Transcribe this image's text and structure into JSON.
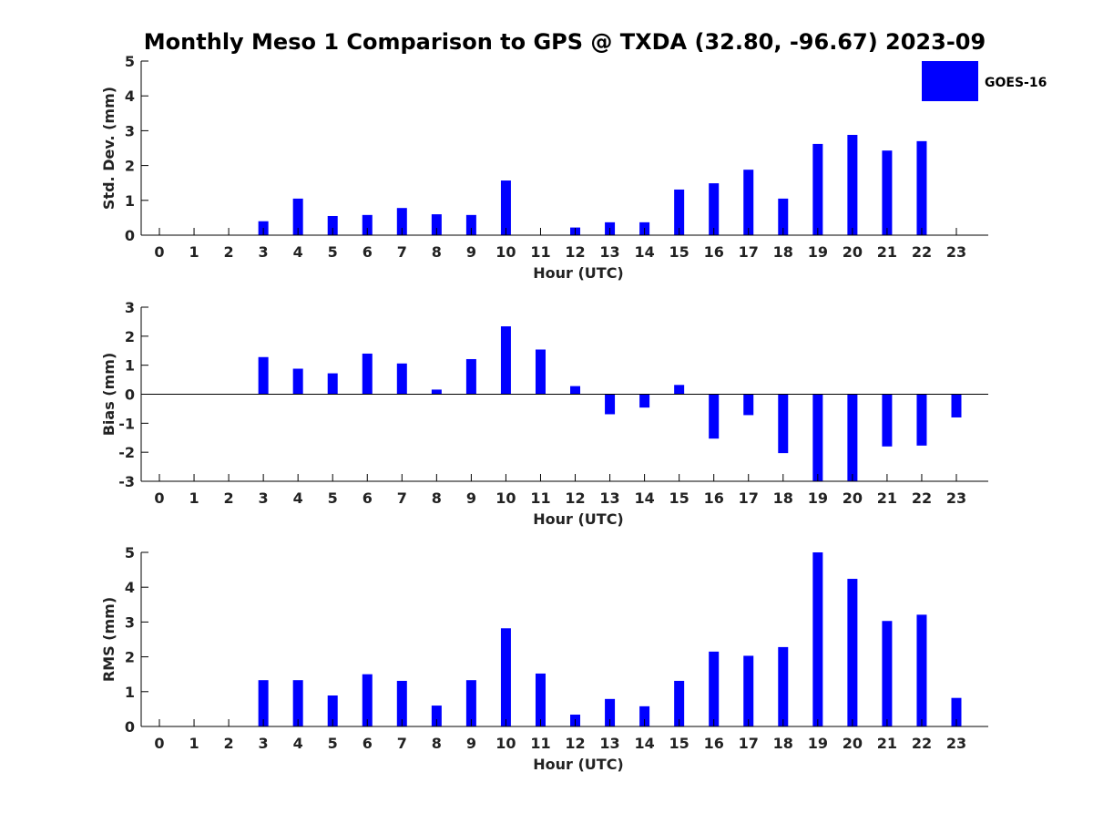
{
  "figure": {
    "title": "Monthly Meso 1 Comparison to GPS @ TXDA (32.80, -96.67) 2023-09",
    "legend": {
      "label": "GOES-16",
      "placement": "top-right",
      "color": "#0000ff"
    }
  },
  "chart_data": [
    {
      "type": "bar",
      "ylabel": "Std. Dev. (mm)",
      "xlabel": "Hour (UTC)",
      "ylim": [
        0,
        5
      ],
      "yticks": [
        0,
        1,
        2,
        3,
        4,
        5
      ],
      "categories": [
        0,
        1,
        2,
        3,
        4,
        5,
        6,
        7,
        8,
        9,
        10,
        11,
        12,
        13,
        14,
        15,
        16,
        17,
        18,
        19,
        20,
        21,
        22,
        23
      ],
      "series": [
        {
          "name": "GOES-16",
          "color": "#0000ff",
          "values": [
            null,
            null,
            null,
            0.4,
            1.05,
            0.55,
            0.58,
            0.78,
            0.6,
            0.58,
            1.57,
            null,
            0.22,
            0.37,
            0.37,
            1.31,
            1.49,
            1.88,
            1.05,
            2.62,
            2.88,
            2.43,
            2.7,
            null
          ]
        }
      ]
    },
    {
      "type": "bar",
      "ylabel": "Bias (mm)",
      "xlabel": "Hour (UTC)",
      "ylim": [
        -3,
        3
      ],
      "yticks": [
        -3,
        -2,
        -1,
        0,
        1,
        2,
        3
      ],
      "categories": [
        0,
        1,
        2,
        3,
        4,
        5,
        6,
        7,
        8,
        9,
        10,
        11,
        12,
        13,
        14,
        15,
        16,
        17,
        18,
        19,
        20,
        21,
        22,
        23
      ],
      "series": [
        {
          "name": "GOES-16",
          "color": "#0000ff",
          "values": [
            null,
            null,
            null,
            1.28,
            0.88,
            0.72,
            1.4,
            1.06,
            0.16,
            1.21,
            2.34,
            1.54,
            0.28,
            -0.69,
            -0.46,
            0.32,
            -1.53,
            -0.72,
            -2.03,
            -3.0,
            -3.0,
            -1.8,
            -1.77,
            -0.8
          ]
        }
      ]
    },
    {
      "type": "bar",
      "ylabel": "RMS (mm)",
      "xlabel": "Hour (UTC)",
      "ylim": [
        0,
        5
      ],
      "yticks": [
        0,
        1,
        2,
        3,
        4,
        5
      ],
      "categories": [
        0,
        1,
        2,
        3,
        4,
        5,
        6,
        7,
        8,
        9,
        10,
        11,
        12,
        13,
        14,
        15,
        16,
        17,
        18,
        19,
        20,
        21,
        22,
        23
      ],
      "series": [
        {
          "name": "GOES-16",
          "color": "#0000ff",
          "values": [
            null,
            null,
            null,
            1.33,
            1.33,
            0.89,
            1.5,
            1.31,
            0.6,
            1.33,
            2.82,
            1.52,
            0.34,
            0.79,
            0.58,
            1.31,
            2.15,
            2.03,
            2.28,
            5.0,
            4.24,
            3.03,
            3.21,
            0.82
          ]
        }
      ]
    }
  ]
}
